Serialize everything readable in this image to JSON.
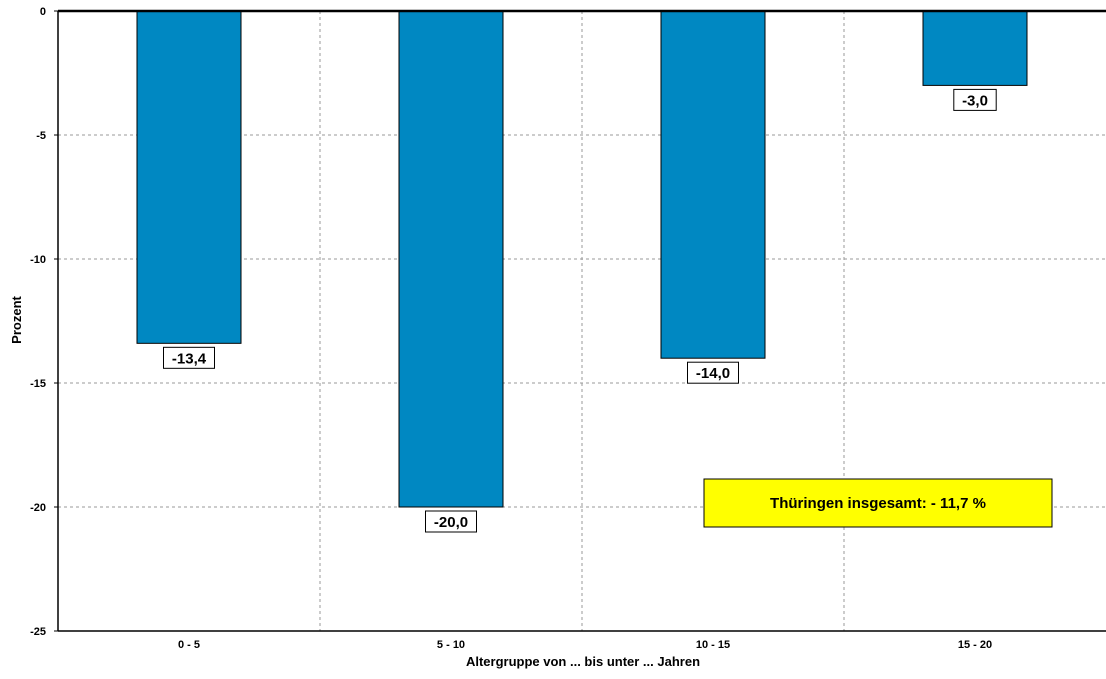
{
  "chart_data": {
    "type": "bar",
    "categories": [
      "0 - 5",
      "5 - 10",
      "10 - 15",
      "15 - 20"
    ],
    "values": [
      -13.4,
      -20.0,
      -14.0,
      -3.0
    ],
    "data_labels": [
      "-13,4",
      "-20,0",
      "-14,0",
      "-3,0"
    ],
    "xlabel": "Altergruppe von ... bis unter ... Jahren",
    "ylabel": "Prozent",
    "ylim": [
      -25,
      0
    ],
    "yticks": [
      0,
      -5,
      -10,
      -15,
      -20,
      -25
    ],
    "ytick_labels": [
      "0",
      "-5",
      "-10",
      "-15",
      "-20",
      "-25"
    ],
    "grid": true,
    "bar_color": "#0088c2",
    "annotation": {
      "text": "Thüringen insgesamt: - 11,7 %",
      "background": "#ffff00"
    }
  }
}
